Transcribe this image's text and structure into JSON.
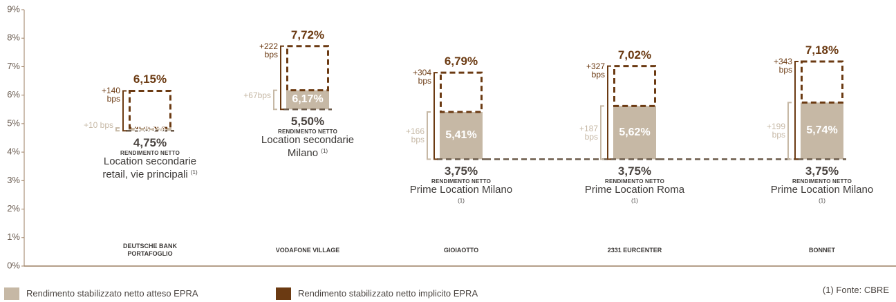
{
  "chart_data": {
    "type": "bar",
    "categories": [
      "DEUTSCHE BANK PORTAFOGLIO",
      "VODAFONE VILLAGE",
      "GIOIAOTTO",
      "2331 EURCENTER",
      "BONNET"
    ],
    "ylim": [
      0,
      9
    ],
    "yticks": [
      {
        "value": 0,
        "label": "0%"
      },
      {
        "value": 1,
        "label": "1%"
      },
      {
        "value": 2,
        "label": "2%"
      },
      {
        "value": 3,
        "label": "3%"
      },
      {
        "value": 4,
        "label": "4%"
      },
      {
        "value": 5,
        "label": "5%"
      },
      {
        "value": 6,
        "label": "6%"
      },
      {
        "value": 7,
        "label": "7%"
      },
      {
        "value": 8,
        "label": "8%"
      },
      {
        "value": 9,
        "label": "9%"
      }
    ],
    "base": {
      "caption": "RENDIMENTO NETTO",
      "values": [
        4.75,
        5.5,
        3.75,
        3.75,
        3.75
      ],
      "value_labels": [
        "4,75%",
        "5,50%",
        "3,75%",
        "3,75%",
        "3,75%"
      ],
      "color": "#6b5a4a",
      "locations": [
        "Location secondarie retail, vie principali",
        "Location secondarie Milano",
        "Prime Location Milano",
        "Prime Location Roma",
        "Prime Location Milano"
      ],
      "footnote_marker": "(1)"
    },
    "series": [
      {
        "name": "Rendimento stabilizzato netto atteso EPRA",
        "color": "#c6b8a5",
        "values": [
          4.85,
          6.17,
          5.41,
          5.62,
          5.74
        ],
        "value_labels": [
          "4,85%",
          "6,17%",
          "5,41%",
          "5,62%",
          "5,74%"
        ],
        "spreads": [
          10,
          67,
          166,
          187,
          199
        ],
        "spread_labels": [
          "+10 bps",
          "+67bps",
          "+166 bps",
          "+187 bps",
          "+199 bps"
        ]
      },
      {
        "name": "Rendimento stabilizzato netto implicito EPRA",
        "color": "#6b3a12",
        "values": [
          6.15,
          7.72,
          6.79,
          7.02,
          7.18
        ],
        "value_labels": [
          "6,15%",
          "7,72%",
          "6,79%",
          "7,02%",
          "7,18%"
        ],
        "spreads": [
          140,
          222,
          304,
          327,
          343
        ],
        "spread_labels": [
          "+140 bps",
          "+222 bps",
          "+304 bps",
          "+327 bps",
          "+343 bps"
        ]
      }
    ],
    "source": "(1) Fonte: CBRE"
  }
}
